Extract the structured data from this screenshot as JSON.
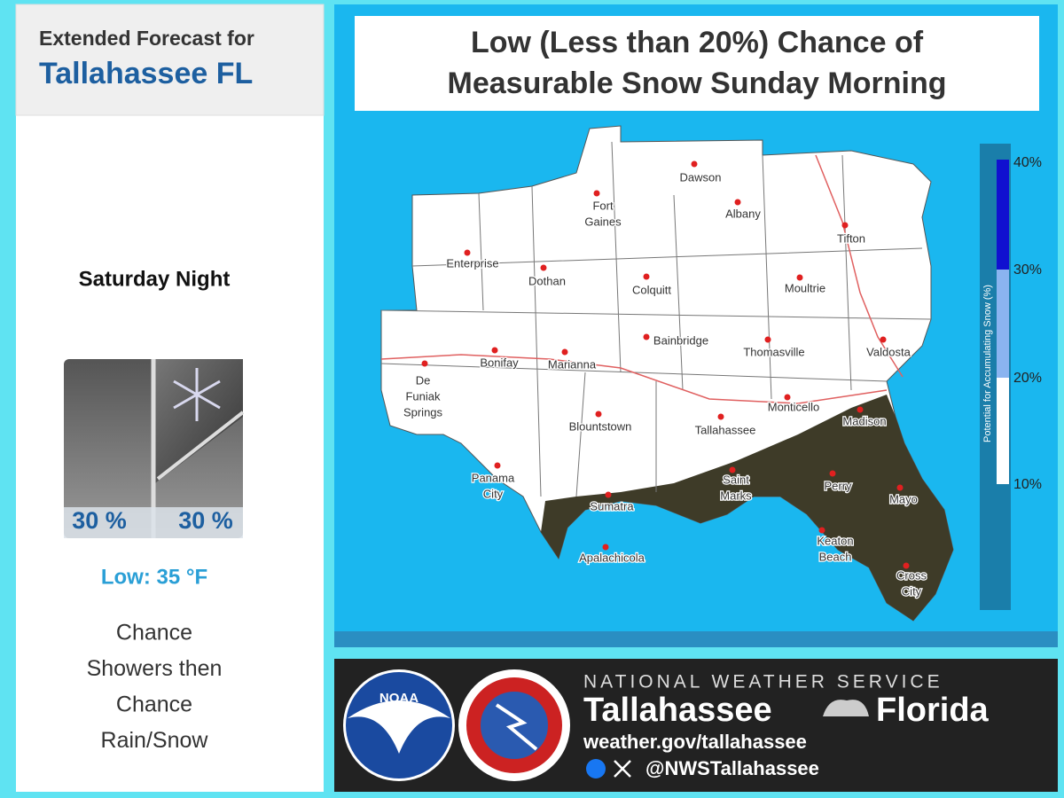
{
  "forecast": {
    "header": "Extended Forecast for",
    "location": "Tallahassee FL",
    "period": "Saturday Night",
    "precip_left": "30 %",
    "precip_right": "30 %",
    "low": "Low: 35 °F",
    "description": [
      "Chance",
      "Showers then",
      "Chance",
      "Rain/Snow"
    ]
  },
  "graphic": {
    "title": [
      "Low (Less than 20%) Chance of",
      "Measurable Snow Sunday Morning"
    ],
    "legend_title": "Potential for Accumulating Snow (%)",
    "legend_labels": [
      "40%",
      "30%",
      "20%",
      "10%"
    ],
    "cities": [
      [
        "Dawson"
      ],
      [
        "Fort",
        "Gaines"
      ],
      [
        "Albany"
      ],
      [
        "Enterprise"
      ],
      [
        "Dothan"
      ],
      [
        "Tifton"
      ],
      [
        "Colquitt"
      ],
      [
        "Moultrie"
      ],
      [
        "Bainbridge"
      ],
      [
        "Thomasville"
      ],
      [
        "Valdosta"
      ],
      [
        "De",
        "Funiak",
        "Springs"
      ],
      [
        "Bonifay"
      ],
      [
        "Marianna"
      ],
      [
        "Blountstown"
      ],
      [
        "Tallahassee"
      ],
      [
        "Monticello"
      ],
      [
        "Madison"
      ],
      [
        "Panama",
        "City"
      ],
      [
        "Saint",
        "Marks"
      ],
      [
        "Perry"
      ],
      [
        "Mayo"
      ],
      [
        "Sumatra"
      ],
      [
        "Apalachicola"
      ],
      [
        "Keaton",
        "Beach"
      ],
      [
        "Cross",
        "City"
      ]
    ]
  },
  "footer": {
    "noaa": "NOAA",
    "agency": "NATIONAL WEATHER SERVICE",
    "office": "Tallahassee",
    "state": "Florida",
    "url": "weather.gov/tallahassee",
    "handle": "@NWSTallahassee"
  }
}
